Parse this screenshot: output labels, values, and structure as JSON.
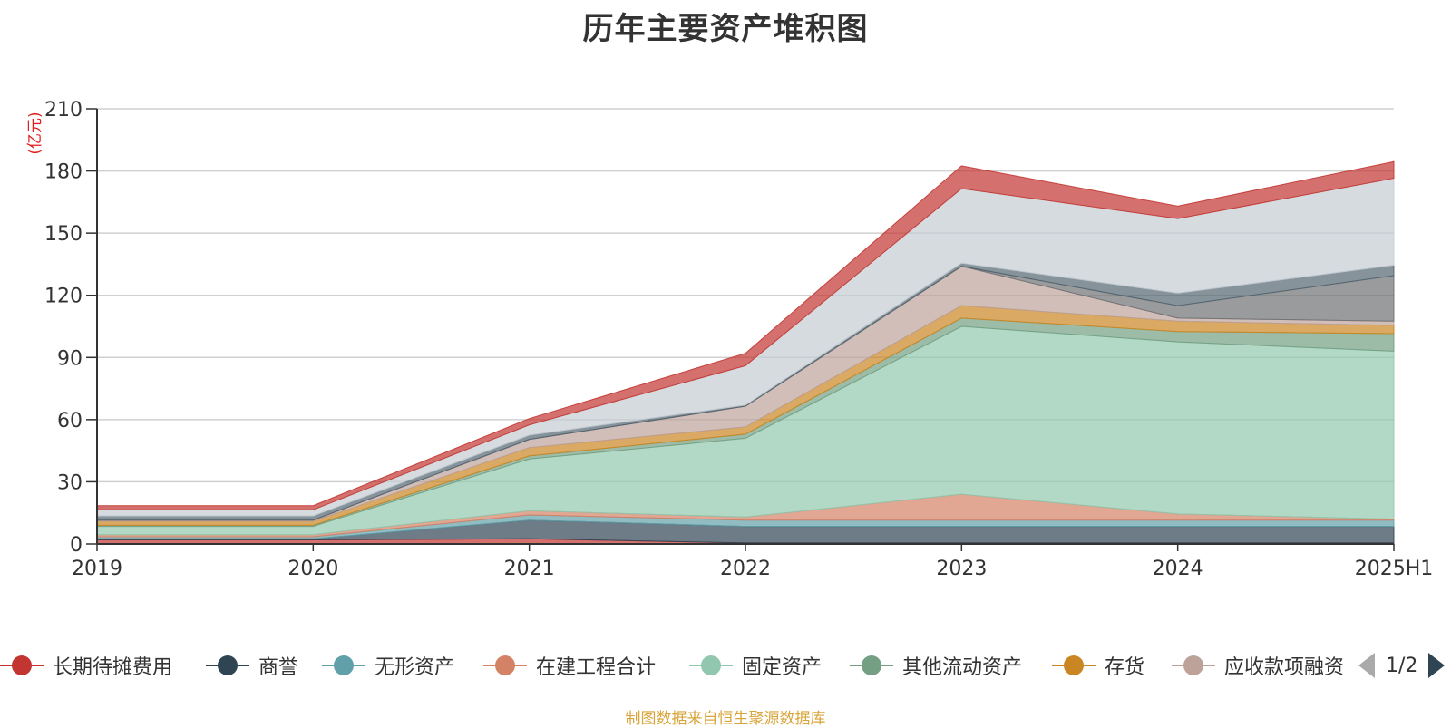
{
  "chart_data": {
    "type": "area",
    "title": "历年主要资产堆积图",
    "unit_label": "(亿元)",
    "xlabel": "",
    "ylabel": "(亿元)",
    "stacked": true,
    "ylim": [
      0,
      210
    ],
    "yticks": [
      "0",
      "30",
      "60",
      "90",
      "120",
      "150",
      "180",
      "210"
    ],
    "categories": [
      "2019",
      "2020",
      "2021",
      "2022",
      "2023",
      "2024",
      "2025H1"
    ],
    "grid": true,
    "legend_position": "bottom",
    "series": [
      {
        "name": "长期待摊费用",
        "color": "#c23531",
        "values": [
          2,
          2,
          2.5,
          0.5,
          0.5,
          0.5,
          0.5
        ]
      },
      {
        "name": "商誉",
        "color": "#2f4554",
        "values": [
          0.5,
          0.5,
          9,
          8,
          8,
          8,
          8
        ]
      },
      {
        "name": "无形资产",
        "color": "#61a0a8",
        "values": [
          1,
          1,
          2.5,
          3,
          3,
          3,
          3
        ]
      },
      {
        "name": "在建工程合计",
        "color": "#d48265",
        "values": [
          1,
          1,
          2,
          1.5,
          12.5,
          3,
          0.5
        ]
      },
      {
        "name": "固定资产",
        "color": "#91c7ae",
        "values": [
          4,
          4,
          25,
          38,
          81,
          83,
          81
        ]
      },
      {
        "name": "其他流动资产",
        "color": "#749f83",
        "values": [
          0.5,
          0.5,
          1.5,
          2,
          4,
          5,
          8.5
        ]
      },
      {
        "name": "存货",
        "color": "#ca8622",
        "values": [
          2,
          2,
          4,
          3.5,
          6,
          5,
          4
        ]
      },
      {
        "name": "应收款项融资",
        "color": "#bda29a",
        "values": [
          0.5,
          0.5,
          4,
          10,
          19,
          1.5,
          2
        ]
      },
      {
        "name": "",
        "color": "#6e7074",
        "values": [
          0,
          0,
          0,
          0,
          0,
          6,
          22
        ]
      },
      {
        "name": "",
        "color": "#546570",
        "values": [
          2,
          2,
          2,
          0.5,
          1.5,
          6,
          5
        ]
      },
      {
        "name": "",
        "color": "#c4ccd3",
        "values": [
          3,
          3,
          5,
          19,
          36,
          36,
          42
        ]
      },
      {
        "name": "",
        "color": "#c23531",
        "values": [
          2,
          2,
          3,
          6,
          11,
          6,
          8
        ]
      }
    ]
  },
  "legend": {
    "page_indicator": "1/2"
  },
  "source_note": "制图数据来自恒生聚源数据库"
}
